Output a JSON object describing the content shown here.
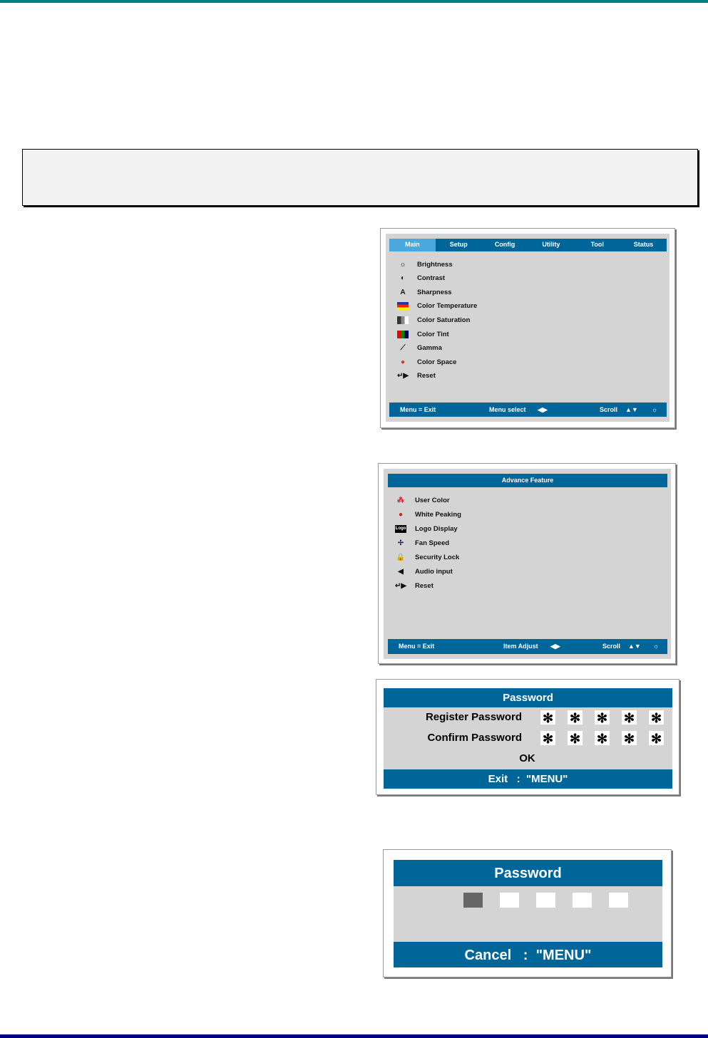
{
  "colors": {
    "osd_blue": "#006699",
    "osd_active_tab": "#4aa8de",
    "osd_panel": "#d4d4d4",
    "top_rule": "#008080",
    "bottom_rule": "#000080"
  },
  "main_menu": {
    "tabs": [
      "Main",
      "Setup",
      "Config",
      "Utility",
      "Tool",
      "Status"
    ],
    "active_tab": "Main",
    "items": [
      {
        "label": "Brightness",
        "icon": "sun-icon"
      },
      {
        "label": "Contrast",
        "icon": "contrast-icon"
      },
      {
        "label": "Sharpness",
        "icon": "sharpness-icon"
      },
      {
        "label": "Color Temperature",
        "icon": "color-temperature-icon"
      },
      {
        "label": "Color Saturation",
        "icon": "color-saturation-icon"
      },
      {
        "label": "Color Tint",
        "icon": "color-tint-icon"
      },
      {
        "label": "Gamma",
        "icon": "gamma-icon"
      },
      {
        "label": "Color Space",
        "icon": "color-space-icon"
      },
      {
        "label": "Reset",
        "icon": "reset-icon"
      }
    ],
    "footer": {
      "exit": "Menu = Exit",
      "select": "Menu select",
      "scroll": "Scroll"
    }
  },
  "advance_menu": {
    "title": "Advance Feature",
    "items": [
      {
        "label": "User Color",
        "icon": "user-color-icon"
      },
      {
        "label": "White Peaking",
        "icon": "white-peaking-icon"
      },
      {
        "label": "Logo Display",
        "icon": "logo-icon",
        "icon_text": "Logo"
      },
      {
        "label": "Fan Speed",
        "icon": "fan-icon"
      },
      {
        "label": "Security Lock",
        "icon": "lock-icon"
      },
      {
        "label": "Audio input",
        "icon": "speaker-icon"
      },
      {
        "label": "Reset",
        "icon": "reset-icon"
      }
    ],
    "footer": {
      "exit": "Menu = Exit",
      "adjust": "Item Adjust",
      "scroll": "Scroll"
    }
  },
  "password_register": {
    "title": "Password",
    "register_label": "Register Password",
    "confirm_label": "Confirm Password",
    "mask_char": "✻",
    "ok": "OK",
    "footer": "Exit   :  \"MENU\""
  },
  "password_entry": {
    "title": "Password",
    "footer": "Cancel   :  \"MENU\""
  }
}
